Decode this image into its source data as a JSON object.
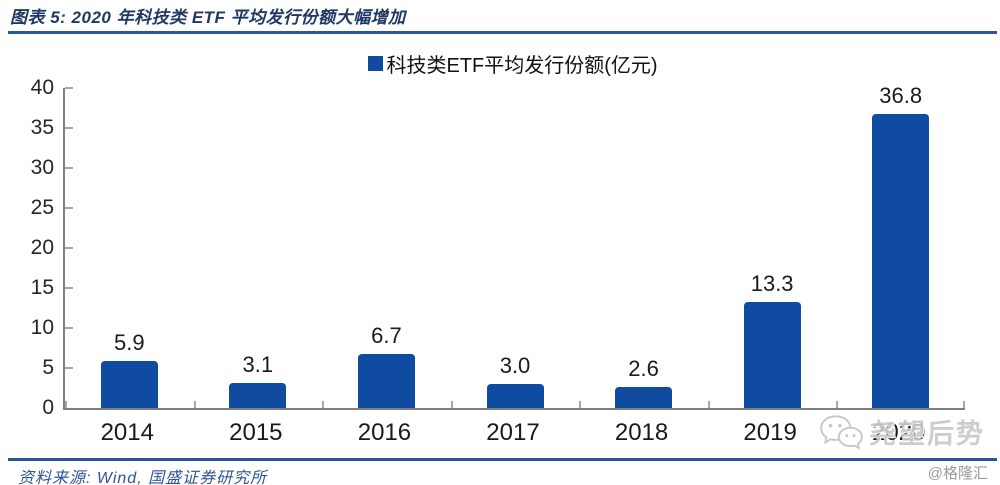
{
  "figure": {
    "title": "图表 5: 2020 年科技类 ETF 平均发行份额大幅增加",
    "source": "资料来源: Wind, 国盛证券研究所",
    "watermark": {
      "wechat_name": "尧望后势",
      "site_credit": "@格隆汇",
      "icon": "wechat-icon"
    },
    "colors": {
      "bar": "#0E4BA1",
      "rule": "#2B579A",
      "title_text": "#1F3864",
      "source_text": "#2E5597",
      "axis_line": "#808080",
      "watermark_gray": "#c9c9c9"
    }
  },
  "chart_data": {
    "type": "bar",
    "title": "",
    "categories": [
      "2014",
      "2015",
      "2016",
      "2017",
      "2018",
      "2019",
      "2020"
    ],
    "values": [
      5.9,
      3.1,
      6.7,
      3.0,
      2.6,
      13.3,
      36.8
    ],
    "legend": [
      "科技类ETF平均发行份额(亿元)"
    ],
    "legend_position": "top-center",
    "xlabel": "",
    "ylabel": "",
    "ylim": [
      0,
      40
    ],
    "ytick_step": 5,
    "yticks": [
      0,
      5,
      10,
      15,
      20,
      25,
      30,
      35,
      40
    ],
    "grid": false,
    "value_labels": true
  }
}
